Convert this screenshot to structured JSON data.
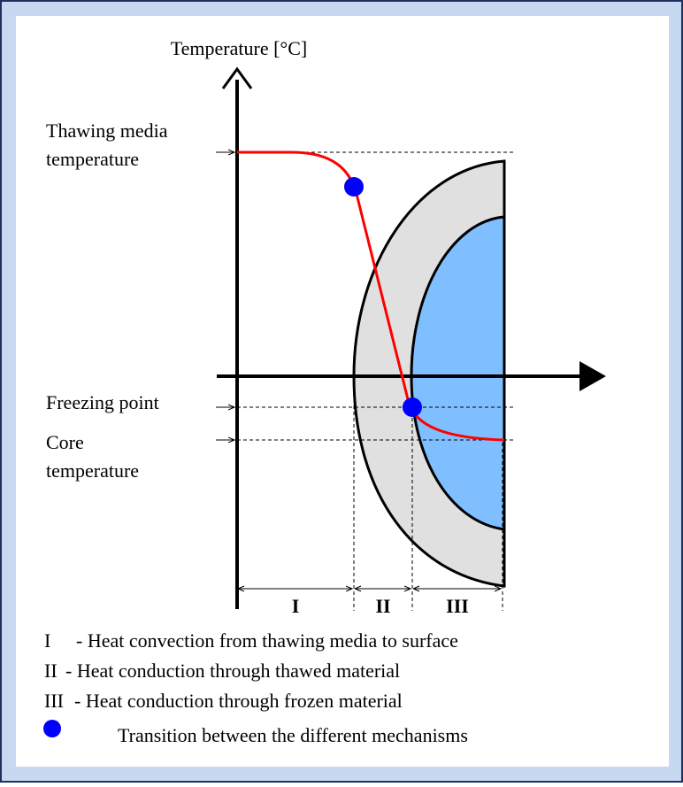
{
  "axis": {
    "y_label": "Temperature [°C]"
  },
  "levels": [
    {
      "lines": [
        "Thawing media",
        "temperature"
      ]
    },
    {
      "lines": [
        "Freezing point"
      ]
    },
    {
      "lines": [
        "Core",
        "temperature"
      ]
    }
  ],
  "regions": [
    {
      "label": "I",
      "key": "I",
      "description": "- Heat convection from thawing media to surface"
    },
    {
      "label": "II",
      "key": "II",
      "description": "- Heat conduction through thawed material"
    },
    {
      "label": "III",
      "key": "III",
      "description": "- Heat conduction through frozen material"
    }
  ],
  "legend": {
    "marker_text": "Transition between the different mechanisms"
  }
}
